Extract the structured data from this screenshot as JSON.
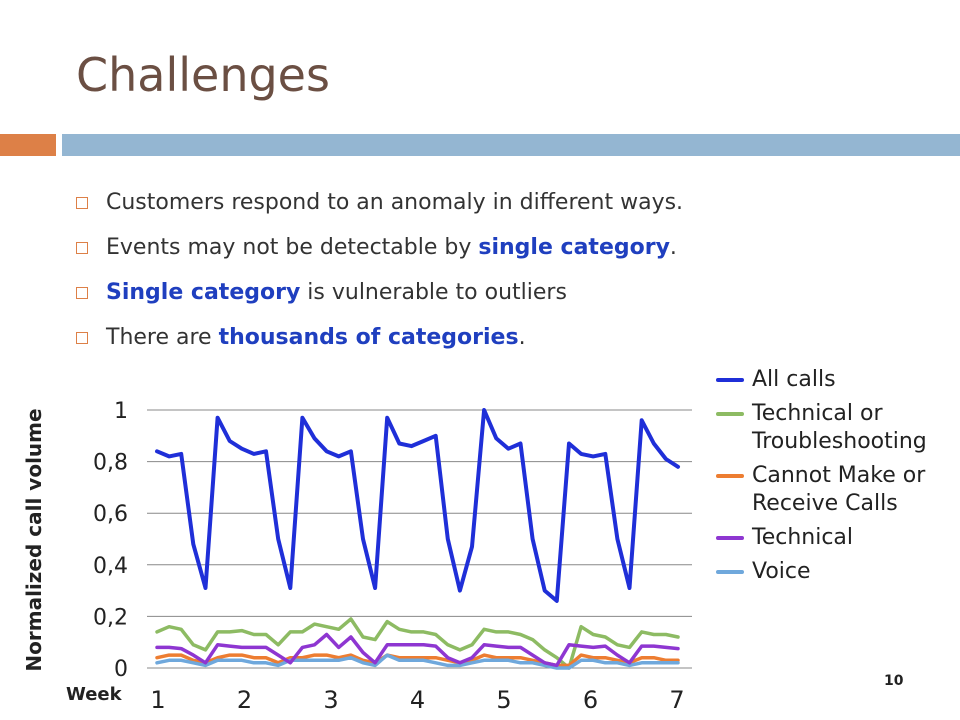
{
  "slide": {
    "title": "Challenges",
    "bullets": [
      {
        "parts": [
          {
            "text": "Customers respond to an anomaly in different ways.",
            "hl": false
          }
        ]
      },
      {
        "parts": [
          {
            "text": "Events may not be detectable by ",
            "hl": false
          },
          {
            "text": "single category",
            "hl": true
          },
          {
            "text": ".",
            "hl": false
          }
        ]
      },
      {
        "parts": [
          {
            "text": "Single category",
            "hl": true
          },
          {
            "text": " is vulnerable to outliers",
            "hl": false
          }
        ]
      },
      {
        "parts": [
          {
            "text": "There are ",
            "hl": false
          },
          {
            "text": "thousands of categories",
            "hl": true
          },
          {
            "text": ".",
            "hl": false
          }
        ]
      }
    ],
    "page_number": "10",
    "accent_color": "#dd8047",
    "bar_color": "#94b6d2",
    "highlight_color": "#1f3fbf"
  },
  "chart_data": {
    "type": "line",
    "ylabel": "Normalized call volume",
    "xlabel": "Week",
    "ylim": [
      0,
      1
    ],
    "yticks": [
      "0",
      "0,2",
      "0,4",
      "0,6",
      "0,8",
      "1"
    ],
    "xticks": [
      "1",
      "2",
      "3",
      "4",
      "5",
      "6",
      "7"
    ],
    "x_range": [
      0,
      62
    ],
    "grid": true,
    "legend_position": "right",
    "series": [
      {
        "name": "All calls",
        "color": "#1f2fd8",
        "values": [
          0.84,
          0.82,
          0.83,
          0.48,
          0.31,
          0.97,
          0.88,
          0.85,
          0.83,
          0.84,
          0.5,
          0.31,
          0.97,
          0.89,
          0.84,
          0.82,
          0.84,
          0.5,
          0.31,
          0.97,
          0.87,
          0.86,
          0.88,
          0.9,
          0.5,
          0.3,
          0.47,
          1.0,
          0.89,
          0.85,
          0.87,
          0.5,
          0.3,
          0.26,
          0.87,
          0.83,
          0.82,
          0.83,
          0.5,
          0.31,
          0.96,
          0.87,
          0.81,
          0.78
        ]
      },
      {
        "name": "Technical or Troubleshooting",
        "color": "#8dbb63",
        "values": [
          0.14,
          0.16,
          0.15,
          0.09,
          0.07,
          0.14,
          0.14,
          0.145,
          0.13,
          0.13,
          0.09,
          0.14,
          0.14,
          0.17,
          0.16,
          0.15,
          0.19,
          0.12,
          0.11,
          0.18,
          0.15,
          0.14,
          0.14,
          0.13,
          0.09,
          0.07,
          0.09,
          0.15,
          0.14,
          0.14,
          0.13,
          0.11,
          0.07,
          0.04,
          0.0,
          0.16,
          0.13,
          0.12,
          0.09,
          0.08,
          0.14,
          0.13,
          0.13,
          0.12
        ]
      },
      {
        "name": "Cannot Make or Receive Calls",
        "color": "#ed7d31",
        "values": [
          0.04,
          0.05,
          0.05,
          0.03,
          0.02,
          0.04,
          0.05,
          0.05,
          0.04,
          0.04,
          0.02,
          0.04,
          0.04,
          0.05,
          0.05,
          0.04,
          0.05,
          0.03,
          0.02,
          0.05,
          0.04,
          0.04,
          0.04,
          0.04,
          0.03,
          0.02,
          0.03,
          0.05,
          0.04,
          0.04,
          0.04,
          0.03,
          0.02,
          0.01,
          0.01,
          0.05,
          0.04,
          0.04,
          0.03,
          0.02,
          0.04,
          0.04,
          0.03,
          0.03
        ]
      },
      {
        "name": "Technical",
        "color": "#8e36d1",
        "values": [
          0.08,
          0.08,
          0.075,
          0.05,
          0.02,
          0.09,
          0.085,
          0.08,
          0.08,
          0.08,
          0.05,
          0.02,
          0.08,
          0.09,
          0.13,
          0.08,
          0.12,
          0.06,
          0.02,
          0.09,
          0.09,
          0.09,
          0.09,
          0.085,
          0.04,
          0.02,
          0.04,
          0.09,
          0.085,
          0.08,
          0.08,
          0.05,
          0.02,
          0.01,
          0.09,
          0.085,
          0.08,
          0.085,
          0.05,
          0.02,
          0.085,
          0.085,
          0.08,
          0.075
        ]
      },
      {
        "name": "Voice",
        "color": "#6fa8dc",
        "values": [
          0.02,
          0.03,
          0.03,
          0.02,
          0.01,
          0.03,
          0.03,
          0.03,
          0.02,
          0.02,
          0.01,
          0.03,
          0.03,
          0.03,
          0.03,
          0.03,
          0.04,
          0.02,
          0.01,
          0.05,
          0.03,
          0.03,
          0.03,
          0.02,
          0.01,
          0.01,
          0.02,
          0.03,
          0.03,
          0.03,
          0.02,
          0.02,
          0.01,
          0.0,
          0.0,
          0.03,
          0.03,
          0.02,
          0.02,
          0.01,
          0.02,
          0.02,
          0.02,
          0.02
        ]
      }
    ]
  }
}
